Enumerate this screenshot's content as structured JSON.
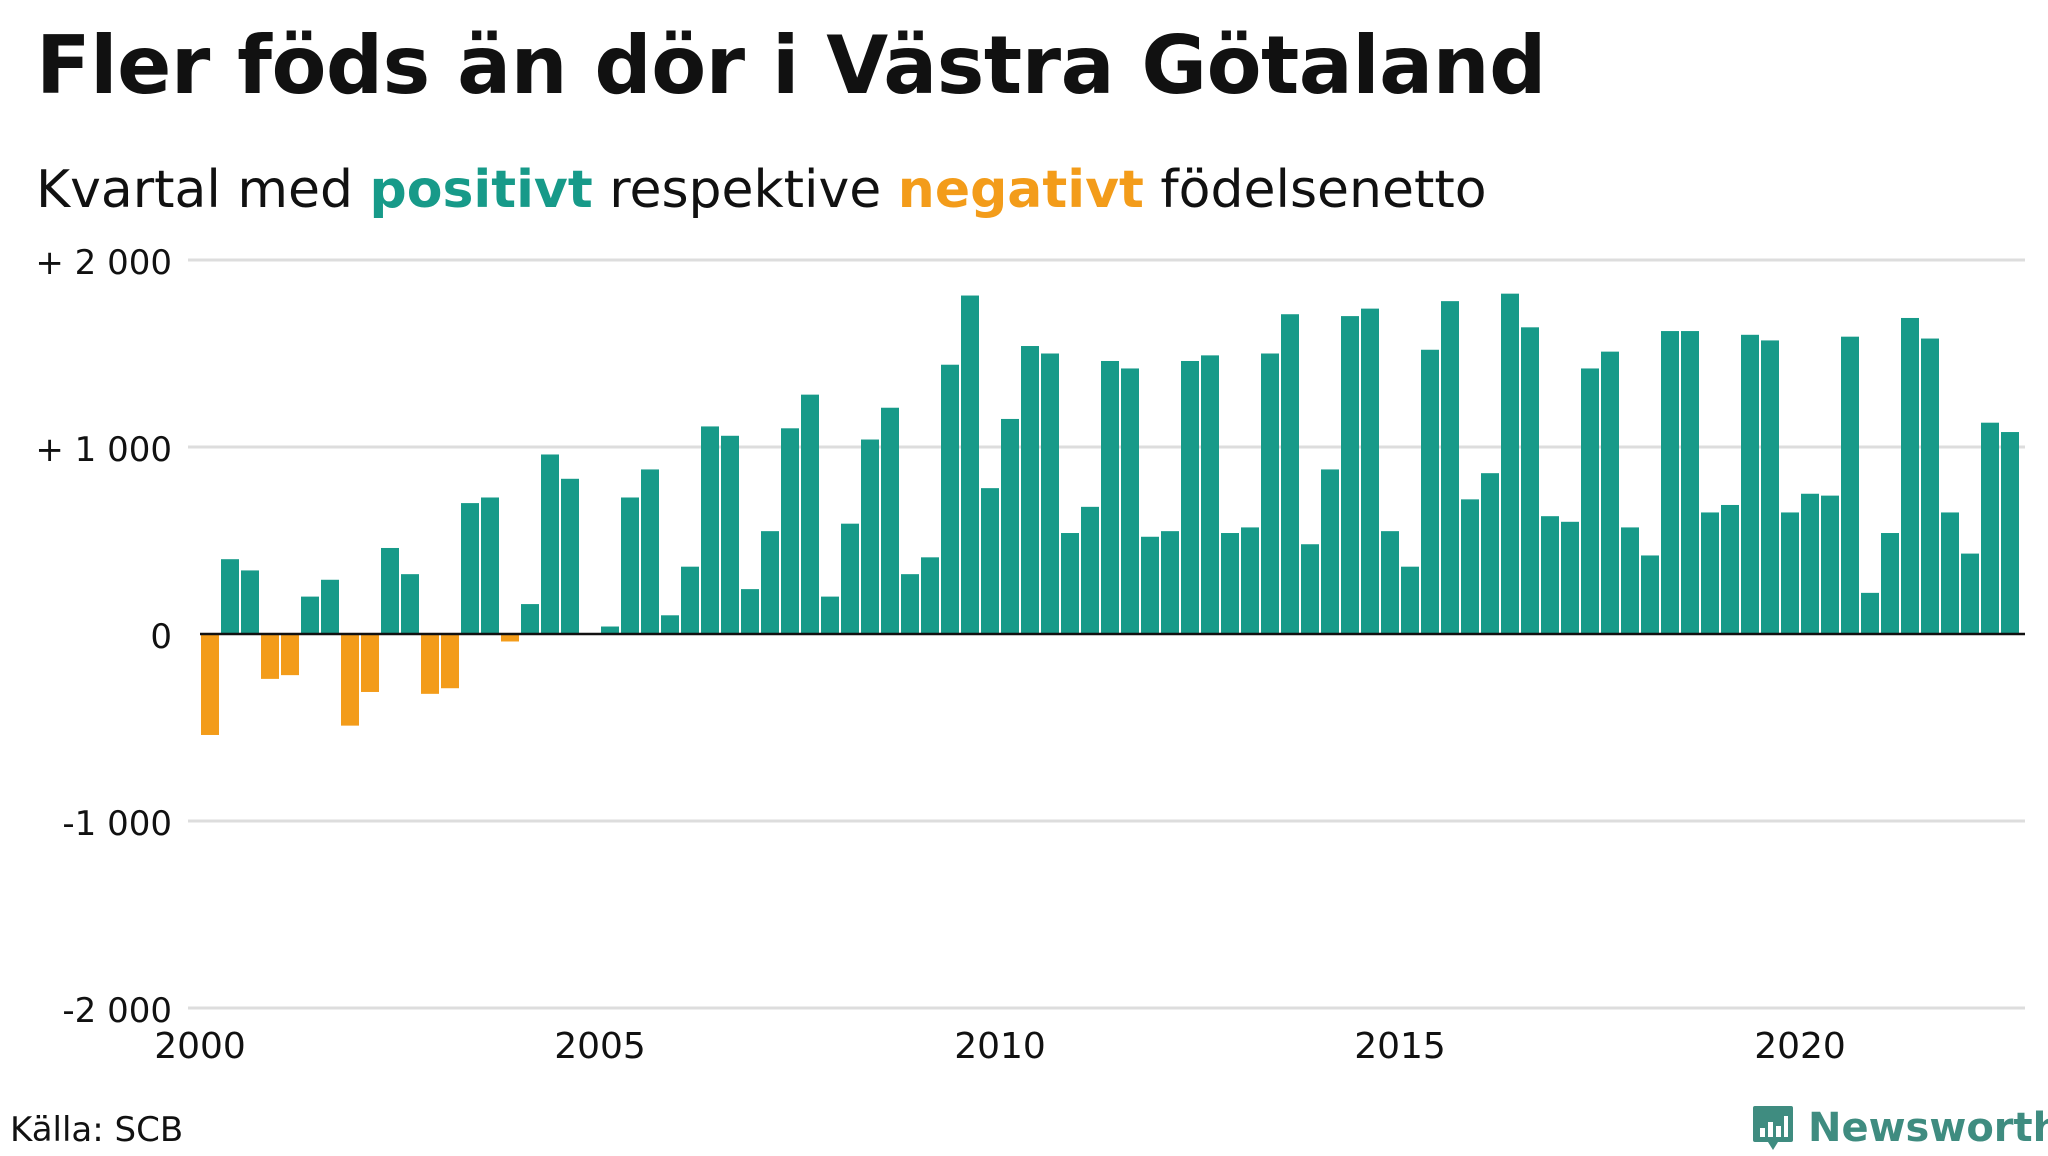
{
  "header": {
    "title": "Fler föds än dör i Västra Götaland",
    "subtitle_pre": "Kvartal med ",
    "subtitle_pos": "positivt",
    "subtitle_mid": " respektive ",
    "subtitle_neg": "negativt",
    "subtitle_post": " födelsenetto"
  },
  "footer": {
    "source": "Källa: SCB",
    "brand": "Newsworthy"
  },
  "colors": {
    "positive": "#179a89",
    "negative": "#f39c1a",
    "grid": "#dddddd",
    "zero_line": "#111111"
  },
  "chart_data": {
    "type": "bar",
    "x_start_year": 2000,
    "x_step": 0.25,
    "x_ticks": [
      {
        "value": 2000,
        "label": "2000"
      },
      {
        "value": 2005,
        "label": "2005"
      },
      {
        "value": 2010,
        "label": "2010"
      },
      {
        "value": 2015,
        "label": "2015"
      },
      {
        "value": 2020,
        "label": "2020"
      }
    ],
    "ylim": [
      -2000,
      2000
    ],
    "y_ticks": [
      {
        "value": 2000,
        "label": "+ 2 000"
      },
      {
        "value": 1000,
        "label": "+ 1 000"
      },
      {
        "value": 0,
        "label": "0"
      },
      {
        "value": -1000,
        "label": "-1 000"
      },
      {
        "value": -2000,
        "label": "-2 000"
      }
    ],
    "grid": true,
    "values": [
      -540,
      400,
      340,
      -240,
      -220,
      200,
      290,
      -490,
      -310,
      460,
      320,
      -320,
      -290,
      700,
      730,
      -40,
      160,
      960,
      830,
      0,
      40,
      730,
      880,
      100,
      360,
      1110,
      1060,
      240,
      550,
      1100,
      1280,
      200,
      590,
      1040,
      1210,
      320,
      410,
      1440,
      1810,
      780,
      1150,
      1540,
      1500,
      540,
      680,
      1460,
      1420,
      520,
      550,
      1460,
      1490,
      540,
      570,
      1500,
      1710,
      480,
      880,
      1700,
      1740,
      550,
      360,
      1520,
      1780,
      720,
      860,
      1820,
      1640,
      630,
      600,
      1420,
      1510,
      570,
      420,
      1620,
      1620,
      650,
      690,
      1600,
      1570,
      650,
      750,
      740,
      1590,
      220,
      540,
      1690,
      1580,
      650,
      430,
      1130,
      1080
    ]
  }
}
